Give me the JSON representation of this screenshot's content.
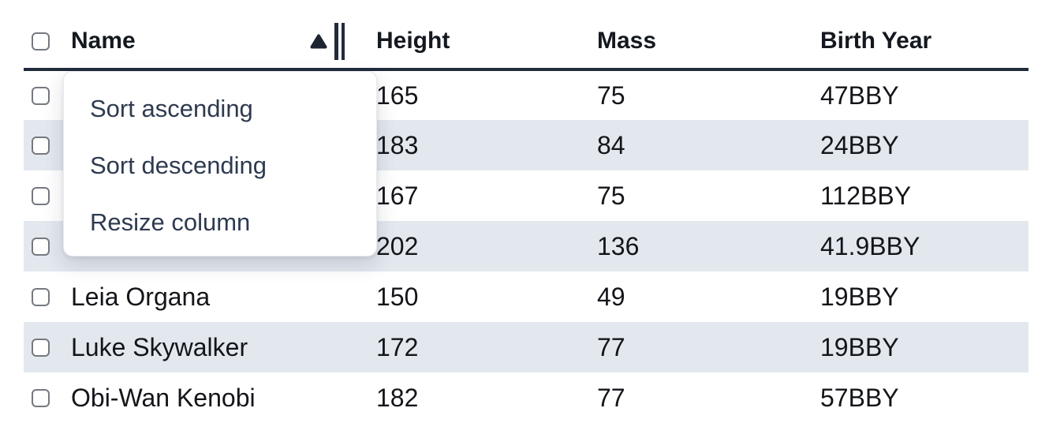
{
  "colors": {
    "stripe": "#e3e8ef",
    "header_border": "#212b3c",
    "header_text": "#14181f",
    "cell_text": "#131519",
    "menu_text": "#2e3a50",
    "menu_border": "#e8eaee",
    "checkbox_border": "#75797f",
    "sort_icon": "#1c2430"
  },
  "table": {
    "columns": [
      {
        "key": "name",
        "label": "Name"
      },
      {
        "key": "height",
        "label": "Height"
      },
      {
        "key": "mass",
        "label": "Mass"
      },
      {
        "key": "birth_year",
        "label": "Birth Year"
      }
    ],
    "sort": {
      "column": "Name",
      "direction": "ascending"
    },
    "rows": [
      {
        "name": "",
        "height": "165",
        "mass": "75",
        "birth_year": "47BBY"
      },
      {
        "name": "",
        "height": "183",
        "mass": "84",
        "birth_year": "24BBY"
      },
      {
        "name": "",
        "height": "167",
        "mass": "75",
        "birth_year": "112BBY"
      },
      {
        "name": "",
        "height": "202",
        "mass": "136",
        "birth_year": "41.9BBY"
      },
      {
        "name": "Leia Organa",
        "height": "150",
        "mass": "49",
        "birth_year": "19BBY"
      },
      {
        "name": "Luke Skywalker",
        "height": "172",
        "mass": "77",
        "birth_year": "19BBY"
      },
      {
        "name": "Obi-Wan Kenobi",
        "height": "182",
        "mass": "77",
        "birth_year": "57BBY"
      }
    ]
  },
  "column_menu": {
    "items": [
      {
        "id": "sort-ascending",
        "label": "Sort ascending"
      },
      {
        "id": "sort-descending",
        "label": "Sort descending"
      },
      {
        "id": "resize-column",
        "label": "Resize column"
      }
    ]
  }
}
